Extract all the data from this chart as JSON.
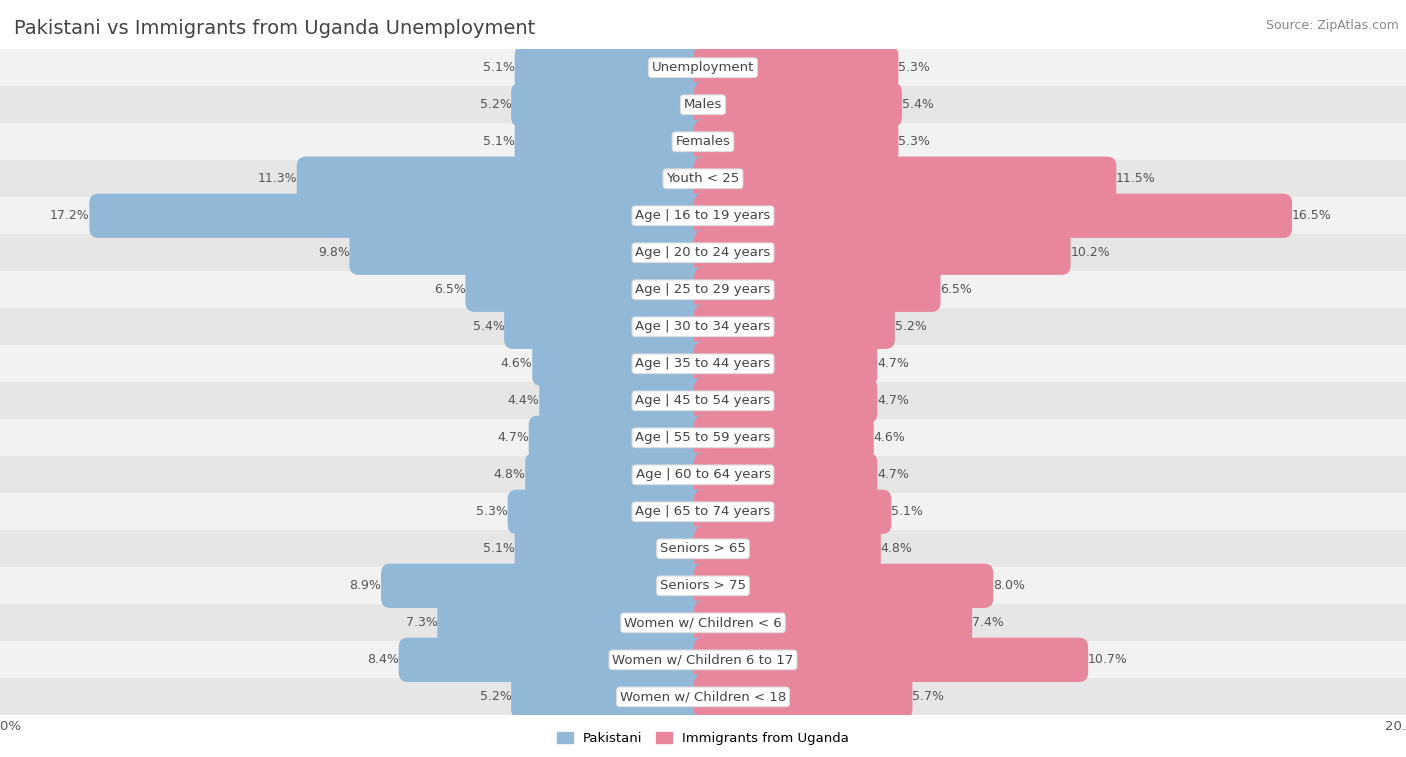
{
  "title": "Pakistani vs Immigrants from Uganda Unemployment",
  "source": "Source: ZipAtlas.com",
  "categories": [
    "Unemployment",
    "Males",
    "Females",
    "Youth < 25",
    "Age | 16 to 19 years",
    "Age | 20 to 24 years",
    "Age | 25 to 29 years",
    "Age | 30 to 34 years",
    "Age | 35 to 44 years",
    "Age | 45 to 54 years",
    "Age | 55 to 59 years",
    "Age | 60 to 64 years",
    "Age | 65 to 74 years",
    "Seniors > 65",
    "Seniors > 75",
    "Women w/ Children < 6",
    "Women w/ Children 6 to 17",
    "Women w/ Children < 18"
  ],
  "pakistani": [
    5.1,
    5.2,
    5.1,
    11.3,
    17.2,
    9.8,
    6.5,
    5.4,
    4.6,
    4.4,
    4.7,
    4.8,
    5.3,
    5.1,
    8.9,
    7.3,
    8.4,
    5.2
  ],
  "uganda": [
    5.3,
    5.4,
    5.3,
    11.5,
    16.5,
    10.2,
    6.5,
    5.2,
    4.7,
    4.7,
    4.6,
    4.7,
    5.1,
    4.8,
    8.0,
    7.4,
    10.7,
    5.7
  ],
  "blue_color": "#92b8d8",
  "pink_color": "#e8879c",
  "row_bg_odd": "#f2f2f2",
  "row_bg_even": "#e6e6e6",
  "axis_limit": 20.0,
  "bar_height": 0.68,
  "label_fontsize": 9.5,
  "title_fontsize": 14,
  "value_fontsize": 9,
  "source_fontsize": 9
}
